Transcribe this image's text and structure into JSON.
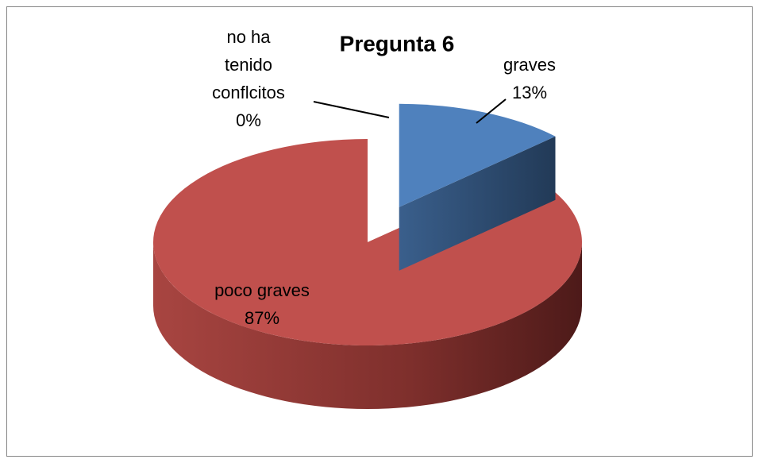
{
  "chart_data": {
    "type": "pie",
    "title": "Pregunta 6",
    "categories": [
      "graves",
      "poco graves",
      "no ha tenido conflcitos"
    ],
    "values": [
      13,
      87,
      0
    ],
    "value_labels": [
      "13%",
      "87%",
      "0%"
    ],
    "colors": [
      "#4f81bd",
      "#c0504d",
      "#9bbb59"
    ]
  }
}
